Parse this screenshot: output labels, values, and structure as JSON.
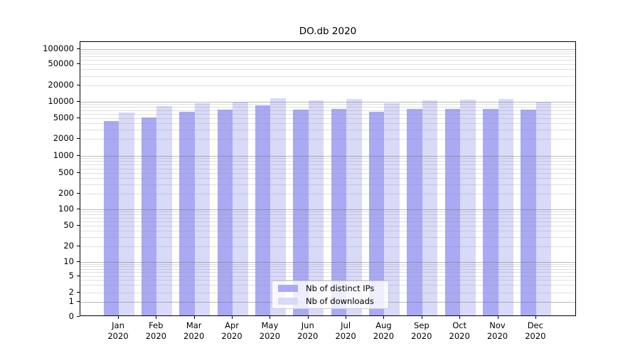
{
  "chart_data": {
    "type": "bar",
    "title": "DO.db 2020",
    "categories": [
      "Jan",
      "Feb",
      "Mar",
      "Apr",
      "May",
      "Jun",
      "Jul",
      "Aug",
      "Sep",
      "Oct",
      "Nov",
      "Dec"
    ],
    "category_year_line": "2020",
    "series": [
      {
        "name": "Nb of distinct IPs",
        "color": "#a9a9f4",
        "values": [
          4100,
          4900,
          6100,
          6800,
          8000,
          6650,
          6900,
          6200,
          6900,
          7000,
          6900,
          6700
        ]
      },
      {
        "name": "Nb of downloads",
        "color": "#d9d9f8",
        "values": [
          6000,
          7700,
          8800,
          9300,
          10800,
          9900,
          10450,
          8700,
          10000,
          10100,
          10500,
          9400
        ]
      }
    ],
    "yscale": "symlog",
    "ytick_labels": [
      "0",
      "1",
      "2",
      "5",
      "10",
      "20",
      "50",
      "100",
      "200",
      "500",
      "1000",
      "2000",
      "5000",
      "10000",
      "20000",
      "50000",
      "100000"
    ],
    "ytick_values": [
      0,
      1,
      2,
      5,
      10,
      20,
      50,
      100,
      200,
      500,
      1000,
      2000,
      5000,
      10000,
      20000,
      50000,
      100000
    ],
    "major_grid_values": [
      1,
      10,
      100,
      1000,
      10000,
      100000
    ],
    "xlabel": "",
    "ylabel": "",
    "legend_position": "lower center",
    "grid": "horizontal-major-and-minor"
  },
  "colors": {
    "distinct_ips": "#a9a9f4",
    "downloads": "#d9d9f8",
    "spine": "#000000"
  }
}
